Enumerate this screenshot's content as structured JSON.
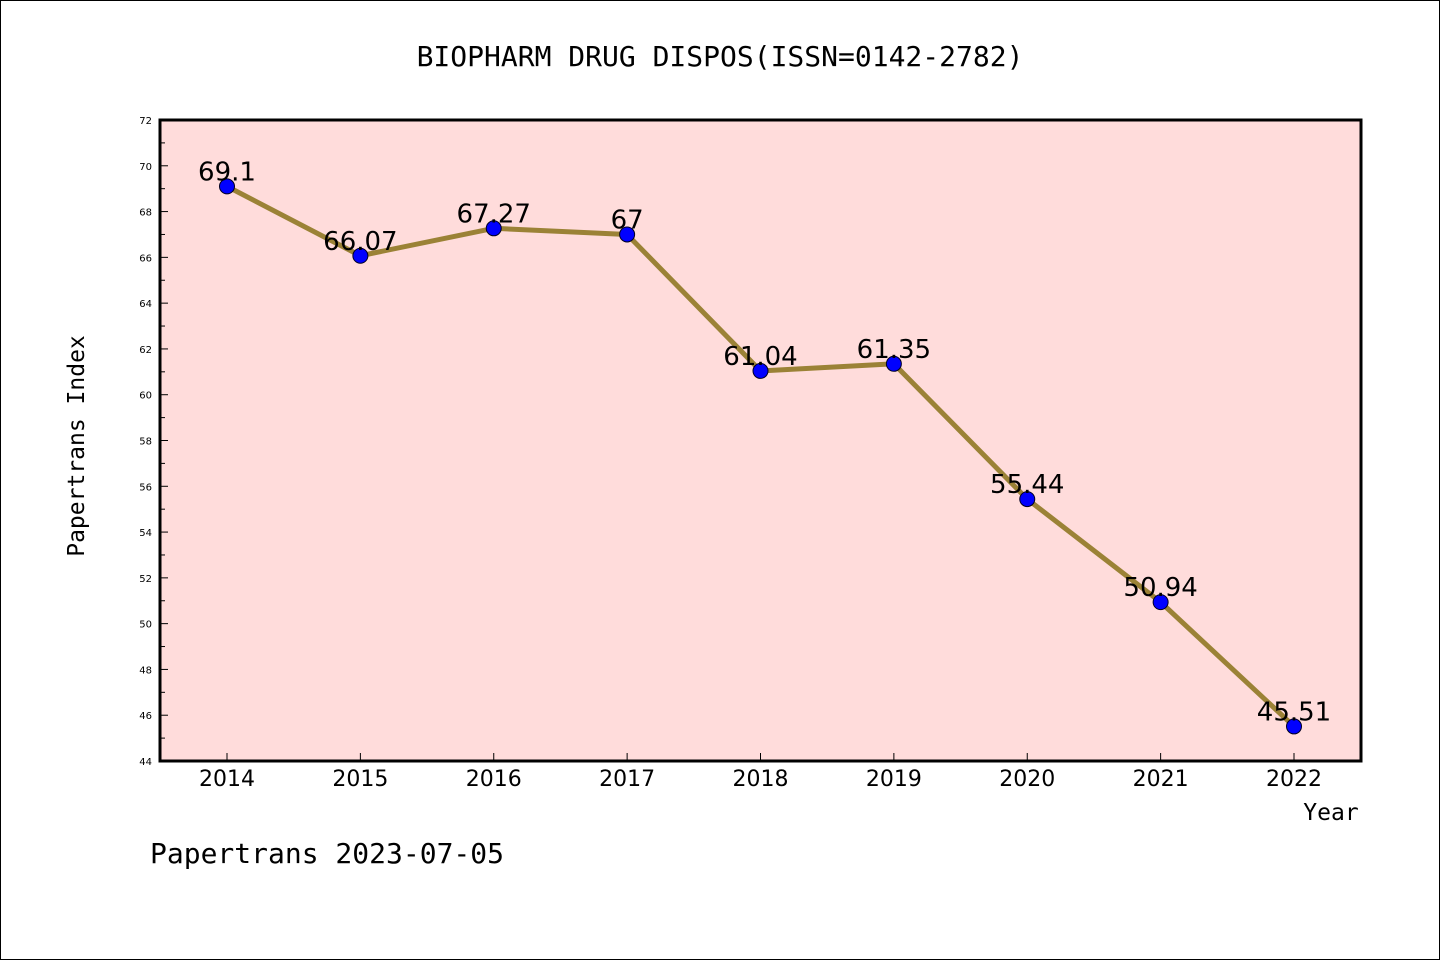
{
  "chart_data": {
    "type": "line",
    "title": "BIOPHARM DRUG DISPOS(ISSN=0142-2782)",
    "xlabel": "Year",
    "ylabel": "Papertrans Index",
    "categories": [
      "2014",
      "2015",
      "2016",
      "2017",
      "2018",
      "2019",
      "2020",
      "2021",
      "2022"
    ],
    "values": [
      69.1,
      66.07,
      67.27,
      67,
      61.04,
      61.35,
      55.44,
      50.94,
      45.51
    ],
    "data_labels": [
      "69.1",
      "66.07",
      "67.27",
      "67",
      "61.04",
      "61.35",
      "55.44",
      "50.94",
      "45.51"
    ],
    "ylim": [
      44,
      72
    ],
    "yticks": [
      44,
      46,
      48,
      50,
      52,
      54,
      56,
      58,
      60,
      62,
      64,
      66,
      68,
      70,
      72
    ],
    "grid": false,
    "legend": "none",
    "colors": {
      "plot_background": "#ffdcdb",
      "line": "#9b8236",
      "marker": "#0000ff"
    }
  },
  "footer": "Papertrans 2023-07-05"
}
